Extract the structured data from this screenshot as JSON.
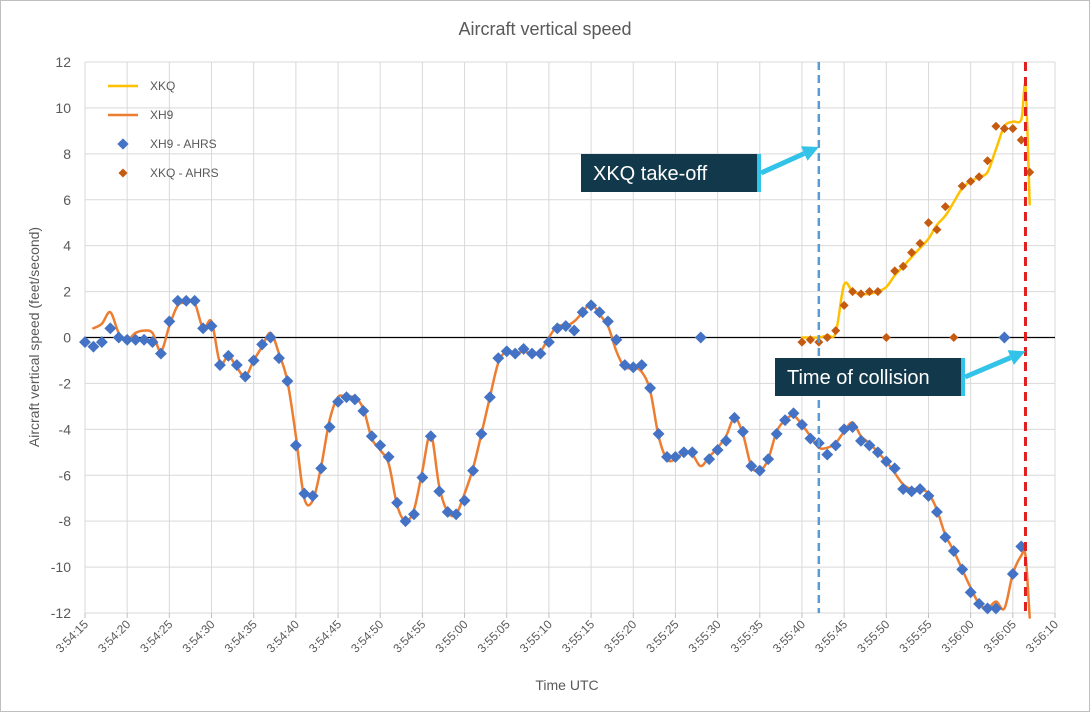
{
  "chart_data": {
    "type": "line",
    "title": "Aircraft vertical speed",
    "xlabel": "Time UTC",
    "ylabel": "Aircraft vertical speed (feet/second)",
    "ylim": [
      -12,
      12
    ],
    "xlim": [
      "3:54:15",
      "3:56:10"
    ],
    "x_tick_labels": [
      "3:54:15",
      "3:54:20",
      "3:54:25",
      "3:54:30",
      "3:54:35",
      "3:54:40",
      "3:54:45",
      "3:54:50",
      "3:54:55",
      "3:55:00",
      "3:55:05",
      "3:55:10",
      "3:55:15",
      "3:55:20",
      "3:55:25",
      "3:55:30",
      "3:55:35",
      "3:55:40",
      "3:55:45",
      "3:55:50",
      "3:55:55",
      "3:56:00",
      "3:56:05",
      "3:56:10"
    ],
    "y_tick_labels": [
      "12",
      "10",
      "8",
      "6",
      "4",
      "2",
      "0",
      "-2",
      "-4",
      "-6",
      "-8",
      "-10",
      "-12"
    ],
    "grid": true,
    "legend_position": "top-left",
    "series": [
      {
        "name": "XKQ",
        "kind": "line",
        "color": "#FFC000",
        "x": [
          "3:55:40",
          "3:55:42",
          "3:55:43",
          "3:55:44",
          "3:55:45",
          "3:55:46",
          "3:55:47",
          "3:55:48",
          "3:55:49",
          "3:55:50",
          "3:55:51",
          "3:55:52",
          "3:55:53",
          "3:55:54",
          "3:55:55",
          "3:55:56",
          "3:55:57",
          "3:55:58",
          "3:55:59",
          "3:56:00",
          "3:56:01",
          "3:56:02",
          "3:56:03",
          "3:56:04",
          "3:56:05",
          "3:56:06",
          "3:56:06.5",
          "3:56:07"
        ],
        "values": [
          0,
          0,
          0.1,
          0.2,
          2.3,
          2.0,
          1.9,
          1.9,
          2.0,
          2.2,
          2.7,
          3.1,
          3.5,
          3.9,
          4.3,
          4.9,
          5.3,
          5.9,
          6.5,
          6.8,
          7.0,
          7.2,
          8.2,
          9.2,
          9.4,
          9.5,
          10.9,
          5.8
        ]
      },
      {
        "name": "XH9",
        "kind": "line",
        "color": "#ED7D31",
        "x": [
          "3:54:16",
          "3:54:17",
          "3:54:18",
          "3:54:19",
          "3:54:20",
          "3:54:21",
          "3:54:22",
          "3:54:23",
          "3:54:24",
          "3:54:25",
          "3:54:26",
          "3:54:27",
          "3:54:28",
          "3:54:29",
          "3:54:30",
          "3:54:31",
          "3:54:32",
          "3:54:33",
          "3:54:34",
          "3:54:35",
          "3:54:36",
          "3:54:37",
          "3:54:38",
          "3:54:39",
          "3:54:40",
          "3:54:41",
          "3:54:42",
          "3:54:43",
          "3:54:44",
          "3:54:45",
          "3:54:46",
          "3:54:47",
          "3:54:48",
          "3:54:49",
          "3:54:50",
          "3:54:51",
          "3:54:52",
          "3:54:53",
          "3:54:54",
          "3:54:55",
          "3:54:56",
          "3:54:57",
          "3:54:58",
          "3:54:59",
          "3:55:00",
          "3:55:01",
          "3:55:02",
          "3:55:03",
          "3:55:04",
          "3:55:05",
          "3:55:06",
          "3:55:07",
          "3:55:08",
          "3:55:09",
          "3:55:10",
          "3:55:11",
          "3:55:12",
          "3:55:13",
          "3:55:14",
          "3:55:15",
          "3:55:16",
          "3:55:17",
          "3:55:18",
          "3:55:19",
          "3:55:20",
          "3:55:21",
          "3:55:22",
          "3:55:23",
          "3:55:24",
          "3:55:25",
          "3:55:26",
          "3:55:27",
          "3:55:28",
          "3:55:29",
          "3:55:30",
          "3:55:31",
          "3:55:32",
          "3:55:33",
          "3:55:34",
          "3:55:35",
          "3:55:36",
          "3:55:37",
          "3:55:38",
          "3:55:39",
          "3:55:40",
          "3:55:41",
          "3:55:42",
          "3:55:43",
          "3:55:44",
          "3:55:45",
          "3:55:46",
          "3:55:47",
          "3:55:48",
          "3:55:49",
          "3:55:50",
          "3:55:51",
          "3:55:52",
          "3:55:53",
          "3:55:54",
          "3:55:55",
          "3:55:56",
          "3:55:57",
          "3:55:58",
          "3:55:59",
          "3:56:00",
          "3:56:01",
          "3:56:02",
          "3:56:03",
          "3:56:04",
          "3:56:05",
          "3:56:06",
          "3:56:06.5",
          "3:56:07"
        ],
        "values": [
          0.4,
          0.6,
          1.1,
          0.2,
          -0.1,
          0.2,
          0.3,
          0.2,
          -0.6,
          0.5,
          1.4,
          1.5,
          1.5,
          0.4,
          0.7,
          -1.1,
          -0.8,
          -1.3,
          -1.7,
          -1.0,
          -0.4,
          0.2,
          -0.7,
          -1.9,
          -4.3,
          -7.0,
          -7.1,
          -5.6,
          -3.6,
          -2.6,
          -2.6,
          -2.6,
          -3.1,
          -4.4,
          -4.9,
          -5.5,
          -7.3,
          -8.0,
          -7.5,
          -5.8,
          -4.2,
          -6.5,
          -7.6,
          -7.7,
          -6.8,
          -5.7,
          -4.2,
          -2.6,
          -1.1,
          -0.6,
          -0.7,
          -0.6,
          -0.7,
          -0.6,
          0.0,
          0.5,
          0.5,
          0.7,
          1.1,
          1.5,
          1.0,
          0.5,
          -0.6,
          -1.3,
          -1.3,
          -1.5,
          -2.3,
          -4.3,
          -5.3,
          -5.3,
          -5.0,
          -5.1,
          -5.6,
          -5.2,
          -4.8,
          -4.3,
          -3.5,
          -4.2,
          -5.6,
          -5.8,
          -5.3,
          -4.1,
          -3.6,
          -3.4,
          -3.8,
          -4.3,
          -4.8,
          -4.8,
          -4.6,
          -4.1,
          -3.7,
          -4.3,
          -4.6,
          -5.0,
          -5.4,
          -5.9,
          -6.4,
          -6.6,
          -6.6,
          -6.8,
          -7.5,
          -8.6,
          -9.3,
          -10.1,
          -10.9,
          -11.6,
          -11.8,
          -11.5,
          -11.8,
          -10.3,
          -9.5,
          -9.5,
          -12.2
        ]
      },
      {
        "name": "XH9 - AHRS",
        "kind": "scatter",
        "color": "#4472C4",
        "x": [
          "3:54:15",
          "3:54:16",
          "3:54:17",
          "3:54:18",
          "3:54:19",
          "3:54:20",
          "3:54:21",
          "3:54:22",
          "3:54:23",
          "3:54:24",
          "3:54:25",
          "3:54:26",
          "3:54:27",
          "3:54:28",
          "3:54:29",
          "3:54:30",
          "3:54:31",
          "3:54:32",
          "3:54:33",
          "3:54:34",
          "3:54:35",
          "3:54:36",
          "3:54:37",
          "3:54:38",
          "3:54:39",
          "3:54:40",
          "3:54:41",
          "3:54:42",
          "3:54:43",
          "3:54:44",
          "3:54:45",
          "3:54:46",
          "3:54:47",
          "3:54:48",
          "3:54:49",
          "3:54:50",
          "3:54:51",
          "3:54:52",
          "3:54:53",
          "3:54:54",
          "3:54:55",
          "3:54:56",
          "3:54:57",
          "3:54:58",
          "3:54:59",
          "3:55:00",
          "3:55:01",
          "3:55:02",
          "3:55:03",
          "3:55:04",
          "3:55:05",
          "3:55:06",
          "3:55:07",
          "3:55:08",
          "3:55:09",
          "3:55:10",
          "3:55:11",
          "3:55:12",
          "3:55:13",
          "3:55:14",
          "3:55:15",
          "3:55:16",
          "3:55:17",
          "3:55:18",
          "3:55:19",
          "3:55:20",
          "3:55:21",
          "3:55:22",
          "3:55:23",
          "3:55:24",
          "3:55:25",
          "3:55:26",
          "3:55:27",
          "3:55:28",
          "3:55:29",
          "3:55:30",
          "3:55:31",
          "3:55:32",
          "3:55:33",
          "3:55:34",
          "3:55:35",
          "3:55:36",
          "3:55:37",
          "3:55:38",
          "3:55:39",
          "3:55:40",
          "3:55:41",
          "3:55:42",
          "3:55:43",
          "3:55:44",
          "3:55:45",
          "3:55:46",
          "3:55:47",
          "3:55:48",
          "3:55:49",
          "3:55:50",
          "3:55:51",
          "3:55:52",
          "3:55:53",
          "3:55:54",
          "3:55:55",
          "3:55:56",
          "3:55:57",
          "3:55:58",
          "3:55:59",
          "3:56:00",
          "3:56:01",
          "3:56:02",
          "3:56:03",
          "3:56:04",
          "3:56:05",
          "3:56:06"
        ],
        "values": [
          -0.2,
          -0.4,
          -0.2,
          0.4,
          0.0,
          -0.1,
          -0.1,
          -0.1,
          -0.2,
          -0.7,
          0.7,
          1.6,
          1.6,
          1.6,
          0.4,
          0.5,
          -1.2,
          -0.8,
          -1.2,
          -1.7,
          -1.0,
          -0.3,
          0.0,
          -0.9,
          -1.9,
          -4.7,
          -6.8,
          -6.9,
          -5.7,
          -3.9,
          -2.8,
          -2.6,
          -2.7,
          -3.2,
          -4.3,
          -4.7,
          -5.2,
          -7.2,
          -8.0,
          -7.7,
          -6.1,
          -4.3,
          -6.7,
          -7.6,
          -7.7,
          -7.1,
          -5.8,
          -4.2,
          -2.6,
          -0.9,
          -0.6,
          -0.7,
          -0.5,
          -0.7,
          -0.7,
          -0.2,
          0.4,
          0.5,
          0.3,
          1.1,
          1.4,
          1.1,
          0.7,
          -0.1,
          -1.2,
          -1.3,
          -1.2,
          -2.2,
          -4.2,
          -5.2,
          -5.2,
          -5.0,
          -5.0,
          0.0,
          -5.3,
          -4.9,
          -4.5,
          -3.5,
          -4.1,
          -5.6,
          -5.8,
          -5.3,
          -4.2,
          -3.6,
          -3.3,
          -3.8,
          -4.4,
          -4.6,
          -5.1,
          -4.7,
          -4.0,
          -3.9,
          -4.5,
          -4.7,
          -5.0,
          -5.4,
          -5.7,
          -6.6,
          -6.7,
          -6.6,
          -6.9,
          -7.6,
          -8.7,
          -9.3,
          -10.1,
          -11.1,
          -11.6,
          -11.8,
          -11.8,
          0.0,
          -10.3,
          -9.1
        ]
      },
      {
        "name": "XKQ - AHRS",
        "kind": "scatter",
        "color": "#C55A11",
        "x": [
          "3:55:40",
          "3:55:41",
          "3:55:42",
          "3:55:43",
          "3:55:44",
          "3:55:45",
          "3:55:46",
          "3:55:47",
          "3:55:48",
          "3:55:49",
          "3:55:50",
          "3:55:51",
          "3:55:52",
          "3:55:53",
          "3:55:54",
          "3:55:55",
          "3:55:56",
          "3:55:57",
          "3:55:58",
          "3:55:59",
          "3:56:00",
          "3:56:01",
          "3:56:02",
          "3:56:03",
          "3:56:04",
          "3:56:05",
          "3:56:06",
          "3:56:07"
        ],
        "values": [
          -0.2,
          -0.1,
          -0.2,
          0.0,
          0.3,
          1.4,
          2.0,
          1.9,
          2.0,
          2.0,
          0.0,
          2.9,
          3.1,
          3.7,
          4.1,
          5.0,
          4.7,
          5.7,
          0.0,
          6.6,
          6.8,
          7.0,
          7.7,
          9.2,
          9.1,
          9.1,
          8.6,
          7.2
        ]
      }
    ],
    "reference_lines": [
      {
        "name": "take-off",
        "x": "3:55:42",
        "color": "#5B9BD5",
        "style": "dashed"
      },
      {
        "name": "collision",
        "x": "3:56:06.5",
        "color": "#E02020",
        "style": "dashed"
      }
    ],
    "annotations": [
      {
        "text": "XKQ take-off",
        "arrow_to": {
          "x": "3:55:42",
          "y": 8.3
        }
      },
      {
        "text": "Time of collision",
        "arrow_to": {
          "x": "3:56:06.5",
          "y": -0.6
        }
      }
    ],
    "annotation_colors": {
      "box": "#12384B",
      "text": "#FFFFFF",
      "arrow": "#33C3E8"
    }
  }
}
